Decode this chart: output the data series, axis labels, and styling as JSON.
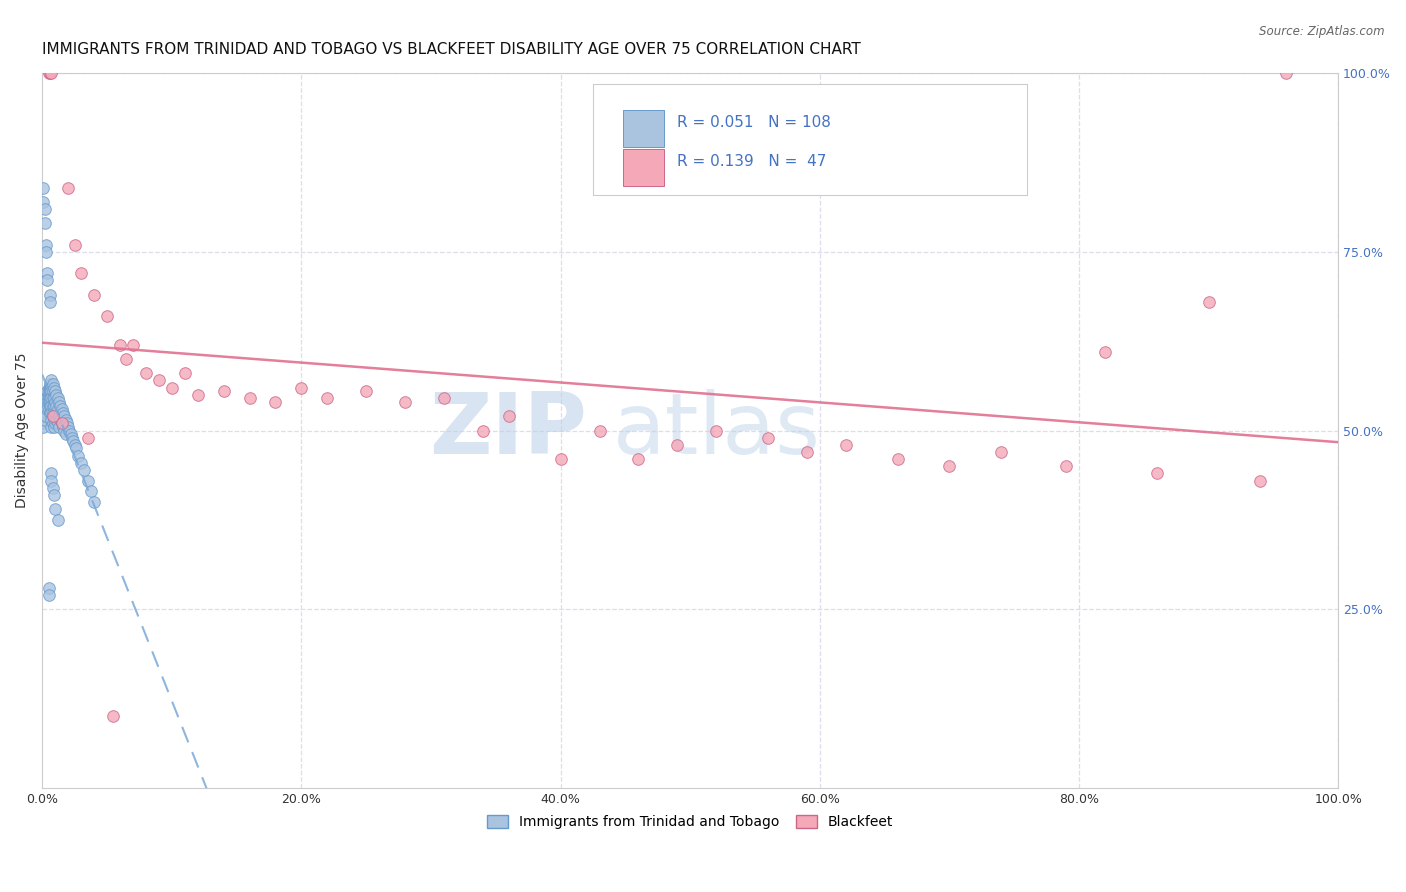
{
  "title": "IMMIGRANTS FROM TRINIDAD AND TOBAGO VS BLACKFEET DISABILITY AGE OVER 75 CORRELATION CHART",
  "source": "Source: ZipAtlas.com",
  "ylabel": "Disability Age Over 75",
  "legend_label_1": "Immigrants from Trinidad and Tobago",
  "legend_label_2": "Blackfeet",
  "r1": 0.051,
  "n1": 108,
  "r2": 0.139,
  "n2": 47,
  "color1": "#aac4e0",
  "color2": "#f4a8b8",
  "line1_color": "#7aaad8",
  "line2_color": "#e07090",
  "watermark_zip": "ZIP",
  "watermark_atlas": "atlas",
  "xmin": 0.0,
  "xmax": 1.0,
  "ymin": 0.0,
  "ymax": 1.0,
  "blue_x": [
    0.001,
    0.001,
    0.001,
    0.001,
    0.002,
    0.002,
    0.002,
    0.002,
    0.002,
    0.003,
    0.003,
    0.003,
    0.003,
    0.003,
    0.003,
    0.004,
    0.004,
    0.004,
    0.004,
    0.004,
    0.005,
    0.005,
    0.005,
    0.005,
    0.005,
    0.005,
    0.006,
    0.006,
    0.006,
    0.006,
    0.006,
    0.006,
    0.006,
    0.007,
    0.007,
    0.007,
    0.007,
    0.007,
    0.007,
    0.007,
    0.007,
    0.008,
    0.008,
    0.008,
    0.008,
    0.008,
    0.008,
    0.009,
    0.009,
    0.009,
    0.009,
    0.009,
    0.01,
    0.01,
    0.01,
    0.01,
    0.011,
    0.011,
    0.011,
    0.012,
    0.012,
    0.012,
    0.013,
    0.013,
    0.013,
    0.014,
    0.014,
    0.015,
    0.015,
    0.016,
    0.016,
    0.017,
    0.017,
    0.018,
    0.018,
    0.019,
    0.02,
    0.021,
    0.022,
    0.023,
    0.024,
    0.025,
    0.026,
    0.028,
    0.03,
    0.032,
    0.035,
    0.038,
    0.04,
    0.001,
    0.001,
    0.002,
    0.002,
    0.003,
    0.003,
    0.004,
    0.004,
    0.005,
    0.005,
    0.006,
    0.006,
    0.007,
    0.007,
    0.008,
    0.009,
    0.01,
    0.012
  ],
  "blue_y": [
    0.52,
    0.515,
    0.51,
    0.505,
    0.535,
    0.53,
    0.525,
    0.52,
    0.515,
    0.545,
    0.54,
    0.535,
    0.53,
    0.525,
    0.52,
    0.555,
    0.545,
    0.54,
    0.535,
    0.53,
    0.56,
    0.555,
    0.55,
    0.545,
    0.54,
    0.53,
    0.565,
    0.56,
    0.555,
    0.545,
    0.54,
    0.535,
    0.525,
    0.57,
    0.56,
    0.555,
    0.545,
    0.535,
    0.525,
    0.515,
    0.505,
    0.565,
    0.555,
    0.545,
    0.535,
    0.525,
    0.51,
    0.56,
    0.545,
    0.535,
    0.52,
    0.505,
    0.555,
    0.54,
    0.525,
    0.51,
    0.55,
    0.535,
    0.515,
    0.545,
    0.53,
    0.51,
    0.54,
    0.52,
    0.505,
    0.535,
    0.515,
    0.53,
    0.51,
    0.525,
    0.505,
    0.52,
    0.5,
    0.515,
    0.495,
    0.51,
    0.505,
    0.5,
    0.495,
    0.49,
    0.485,
    0.48,
    0.475,
    0.465,
    0.455,
    0.445,
    0.43,
    0.415,
    0.4,
    0.84,
    0.82,
    0.81,
    0.79,
    0.76,
    0.75,
    0.72,
    0.71,
    0.28,
    0.27,
    0.69,
    0.68,
    0.44,
    0.43,
    0.42,
    0.41,
    0.39,
    0.375
  ],
  "pink_x": [
    0.005,
    0.006,
    0.007,
    0.02,
    0.025,
    0.03,
    0.04,
    0.05,
    0.06,
    0.065,
    0.07,
    0.08,
    0.09,
    0.1,
    0.11,
    0.12,
    0.14,
    0.16,
    0.18,
    0.2,
    0.22,
    0.25,
    0.28,
    0.31,
    0.34,
    0.36,
    0.4,
    0.43,
    0.46,
    0.49,
    0.52,
    0.56,
    0.59,
    0.62,
    0.66,
    0.7,
    0.74,
    0.79,
    0.82,
    0.86,
    0.9,
    0.94,
    0.96,
    0.008,
    0.015,
    0.035,
    0.055
  ],
  "pink_y": [
    1.0,
    1.0,
    1.0,
    0.84,
    0.76,
    0.72,
    0.69,
    0.66,
    0.62,
    0.6,
    0.62,
    0.58,
    0.57,
    0.56,
    0.58,
    0.55,
    0.555,
    0.545,
    0.54,
    0.56,
    0.545,
    0.555,
    0.54,
    0.545,
    0.5,
    0.52,
    0.46,
    0.5,
    0.46,
    0.48,
    0.5,
    0.49,
    0.47,
    0.48,
    0.46,
    0.45,
    0.47,
    0.45,
    0.61,
    0.44,
    0.68,
    0.43,
    1.0,
    0.52,
    0.51,
    0.49,
    0.1
  ],
  "xtick_vals": [
    0.0,
    0.2,
    0.4,
    0.6,
    0.8,
    1.0
  ],
  "xtick_labels": [
    "0.0%",
    "20.0%",
    "40.0%",
    "60.0%",
    "80.0%",
    "100.0%"
  ],
  "ytick_vals": [
    0.0,
    0.25,
    0.5,
    0.75,
    1.0
  ],
  "ytick_labels_right": [
    "",
    "25.0%",
    "50.0%",
    "75.0%",
    "100.0%"
  ],
  "grid_color": "#ddddee",
  "background_color": "#ffffff",
  "title_fontsize": 11,
  "axis_label_fontsize": 10,
  "tick_fontsize": 9,
  "right_tick_color": "#4472c4"
}
